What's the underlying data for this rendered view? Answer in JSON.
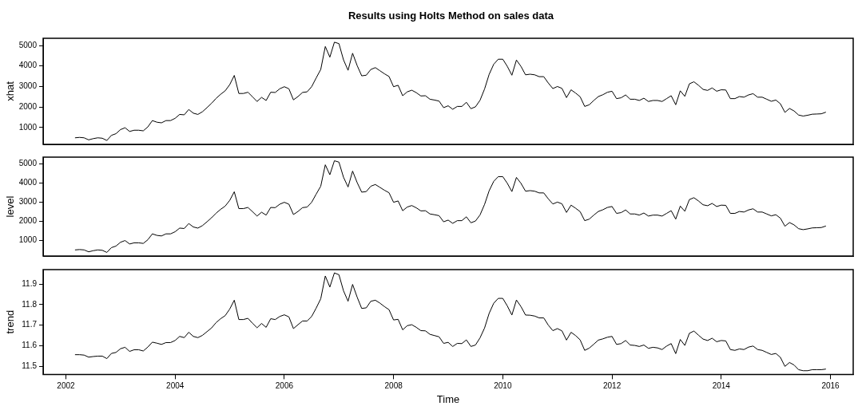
{
  "chart_data": [
    {
      "type": "line",
      "title": "Results using Holts Method on sales data",
      "ylabel": "xhat",
      "tick_labels": "y",
      "xlim": [
        "2001-08",
        "2016-06"
      ],
      "xticks": [
        "2002",
        "2004",
        "2006",
        "2008",
        "2010",
        "2012",
        "2014",
        "2016"
      ],
      "ylim": [
        180,
        5350
      ],
      "yticks": [
        1000,
        2000,
        3000,
        4000,
        5000
      ],
      "x": [
        "2002-03",
        "2002-04",
        "2002-05",
        "2002-06",
        "2002-07",
        "2002-08",
        "2002-09",
        "2002-10",
        "2002-11",
        "2002-12",
        "2003-01",
        "2003-02",
        "2003-03",
        "2003-04",
        "2003-05",
        "2003-06",
        "2003-07",
        "2003-08",
        "2003-09",
        "2003-10",
        "2003-11",
        "2003-12",
        "2004-01",
        "2004-02",
        "2004-03",
        "2004-04",
        "2004-05",
        "2004-06",
        "2004-07",
        "2004-08",
        "2004-09",
        "2004-10",
        "2004-11",
        "2004-12",
        "2005-01",
        "2005-02",
        "2005-03",
        "2005-04",
        "2005-05",
        "2005-06",
        "2005-07",
        "2005-08",
        "2005-09",
        "2005-10",
        "2005-11",
        "2005-12",
        "2006-01",
        "2006-02",
        "2006-03",
        "2006-04",
        "2006-05",
        "2006-06",
        "2006-07",
        "2006-08",
        "2006-09",
        "2006-10",
        "2006-11",
        "2006-12",
        "2007-01",
        "2007-02",
        "2007-03",
        "2007-04",
        "2007-05",
        "2007-06",
        "2007-07",
        "2007-08",
        "2007-09",
        "2007-10",
        "2007-11",
        "2007-12",
        "2008-01",
        "2008-02",
        "2008-03",
        "2008-04",
        "2008-05",
        "2008-06",
        "2008-07",
        "2008-08",
        "2008-09",
        "2008-10",
        "2008-11",
        "2008-12",
        "2009-01",
        "2009-02",
        "2009-03",
        "2009-04",
        "2009-05",
        "2009-06",
        "2009-07",
        "2009-08",
        "2009-09",
        "2009-10",
        "2009-11",
        "2009-12",
        "2010-01",
        "2010-02",
        "2010-03",
        "2010-04",
        "2010-05",
        "2010-06",
        "2010-07",
        "2010-08",
        "2010-09",
        "2010-10",
        "2010-11",
        "2010-12",
        "2011-01",
        "2011-02",
        "2011-03",
        "2011-04",
        "2011-05",
        "2011-06",
        "2011-07",
        "2011-08",
        "2011-09",
        "2011-10",
        "2011-11",
        "2011-12",
        "2012-01",
        "2012-02",
        "2012-03",
        "2012-04",
        "2012-05",
        "2012-06",
        "2012-07",
        "2012-08",
        "2012-09",
        "2012-10",
        "2012-11",
        "2012-12",
        "2013-01",
        "2013-02",
        "2013-03",
        "2013-04",
        "2013-05",
        "2013-06",
        "2013-07",
        "2013-08",
        "2013-09",
        "2013-10",
        "2013-11",
        "2013-12",
        "2014-01",
        "2014-02",
        "2014-03",
        "2014-04",
        "2014-05",
        "2014-06",
        "2014-07",
        "2014-08",
        "2014-09",
        "2014-10",
        "2014-11",
        "2014-12",
        "2015-01",
        "2015-02",
        "2015-03",
        "2015-04",
        "2015-05",
        "2015-06",
        "2015-07",
        "2015-08",
        "2015-09",
        "2015-10",
        "2015-11",
        "2015-12"
      ],
      "series": [
        {
          "color": "#000000",
          "values": [
            500,
            520,
            500,
            400,
            460,
            500,
            480,
            370,
            620,
            700,
            900,
            990,
            810,
            870,
            870,
            840,
            1030,
            1340,
            1260,
            1230,
            1340,
            1340,
            1450,
            1640,
            1620,
            1880,
            1700,
            1640,
            1770,
            1970,
            2180,
            2420,
            2620,
            2790,
            3090,
            3540,
            2660,
            2660,
            2720,
            2500,
            2270,
            2470,
            2320,
            2720,
            2710,
            2890,
            2990,
            2890,
            2350,
            2510,
            2710,
            2740,
            2990,
            3420,
            3830,
            4950,
            4430,
            5160,
            5090,
            4300,
            3790,
            4620,
            4020,
            3520,
            3550,
            3830,
            3920,
            3770,
            3620,
            3490,
            2990,
            3060,
            2550,
            2740,
            2820,
            2700,
            2540,
            2550,
            2380,
            2340,
            2290,
            1970,
            2060,
            1890,
            2030,
            2030,
            2230,
            1920,
            2010,
            2330,
            2880,
            3590,
            4080,
            4330,
            4330,
            3980,
            3550,
            4290,
            3980,
            3570,
            3600,
            3570,
            3480,
            3480,
            3170,
            2900,
            3000,
            2910,
            2460,
            2840,
            2680,
            2500,
            2030,
            2110,
            2320,
            2510,
            2600,
            2720,
            2770,
            2410,
            2450,
            2590,
            2380,
            2380,
            2320,
            2430,
            2270,
            2320,
            2320,
            2270,
            2410,
            2550,
            2110,
            2790,
            2520,
            3130,
            3230,
            3060,
            2860,
            2810,
            2930,
            2770,
            2840,
            2830,
            2410,
            2410,
            2510,
            2480,
            2590,
            2650,
            2480,
            2480,
            2380,
            2280,
            2340,
            2160,
            1740,
            1930,
            1810,
            1610,
            1560,
            1600,
            1650,
            1660,
            1670,
            1750
          ]
        }
      ]
    },
    {
      "type": "line",
      "ylabel": "level",
      "tick_labels": "y",
      "xlim": [
        "2001-08",
        "2016-06"
      ],
      "xticks": [
        "2002",
        "2004",
        "2006",
        "2008",
        "2010",
        "2012",
        "2014",
        "2016"
      ],
      "ylim": [
        170,
        5340
      ],
      "yticks": [
        1000,
        2000,
        3000,
        4000,
        5000
      ],
      "x": [
        "2002-03",
        "2002-04",
        "2002-05",
        "2002-06",
        "2002-07",
        "2002-08",
        "2002-09",
        "2002-10",
        "2002-11",
        "2002-12",
        "2003-01",
        "2003-02",
        "2003-03",
        "2003-04",
        "2003-05",
        "2003-06",
        "2003-07",
        "2003-08",
        "2003-09",
        "2003-10",
        "2003-11",
        "2003-12",
        "2004-01",
        "2004-02",
        "2004-03",
        "2004-04",
        "2004-05",
        "2004-06",
        "2004-07",
        "2004-08",
        "2004-09",
        "2004-10",
        "2004-11",
        "2004-12",
        "2005-01",
        "2005-02",
        "2005-03",
        "2005-04",
        "2005-05",
        "2005-06",
        "2005-07",
        "2005-08",
        "2005-09",
        "2005-10",
        "2005-11",
        "2005-12",
        "2006-01",
        "2006-02",
        "2006-03",
        "2006-04",
        "2006-05",
        "2006-06",
        "2006-07",
        "2006-08",
        "2006-09",
        "2006-10",
        "2006-11",
        "2006-12",
        "2007-01",
        "2007-02",
        "2007-03",
        "2007-04",
        "2007-05",
        "2007-06",
        "2007-07",
        "2007-08",
        "2007-09",
        "2007-10",
        "2007-11",
        "2007-12",
        "2008-01",
        "2008-02",
        "2008-03",
        "2008-04",
        "2008-05",
        "2008-06",
        "2008-07",
        "2008-08",
        "2008-09",
        "2008-10",
        "2008-11",
        "2008-12",
        "2009-01",
        "2009-02",
        "2009-03",
        "2009-04",
        "2009-05",
        "2009-06",
        "2009-07",
        "2009-08",
        "2009-09",
        "2009-10",
        "2009-11",
        "2009-12",
        "2010-01",
        "2010-02",
        "2010-03",
        "2010-04",
        "2010-05",
        "2010-06",
        "2010-07",
        "2010-08",
        "2010-09",
        "2010-10",
        "2010-11",
        "2010-12",
        "2011-01",
        "2011-02",
        "2011-03",
        "2011-04",
        "2011-05",
        "2011-06",
        "2011-07",
        "2011-08",
        "2011-09",
        "2011-10",
        "2011-11",
        "2011-12",
        "2012-01",
        "2012-02",
        "2012-03",
        "2012-04",
        "2012-05",
        "2012-06",
        "2012-07",
        "2012-08",
        "2012-09",
        "2012-10",
        "2012-11",
        "2012-12",
        "2013-01",
        "2013-02",
        "2013-03",
        "2013-04",
        "2013-05",
        "2013-06",
        "2013-07",
        "2013-08",
        "2013-09",
        "2013-10",
        "2013-11",
        "2013-12",
        "2014-01",
        "2014-02",
        "2014-03",
        "2014-04",
        "2014-05",
        "2014-06",
        "2014-07",
        "2014-08",
        "2014-09",
        "2014-10",
        "2014-11",
        "2014-12",
        "2015-01",
        "2015-02",
        "2015-03",
        "2015-04",
        "2015-05",
        "2015-06",
        "2015-07",
        "2015-08",
        "2015-09",
        "2015-10",
        "2015-11",
        "2015-12"
      ],
      "series": [
        {
          "color": "#000000",
          "values": [
            490,
            510,
            490,
            390,
            450,
            490,
            470,
            360,
            610,
            690,
            890,
            980,
            800,
            860,
            860,
            830,
            1020,
            1330,
            1250,
            1220,
            1330,
            1330,
            1440,
            1630,
            1610,
            1870,
            1690,
            1630,
            1760,
            1960,
            2170,
            2410,
            2610,
            2780,
            3080,
            3530,
            2650,
            2650,
            2710,
            2490,
            2260,
            2460,
            2310,
            2710,
            2700,
            2880,
            2980,
            2880,
            2340,
            2500,
            2700,
            2730,
            2980,
            3410,
            3820,
            4940,
            4420,
            5150,
            5080,
            4290,
            3780,
            4610,
            4010,
            3510,
            3540,
            3820,
            3910,
            3760,
            3610,
            3480,
            2980,
            3050,
            2540,
            2730,
            2810,
            2690,
            2530,
            2540,
            2370,
            2330,
            2280,
            1960,
            2050,
            1880,
            2020,
            2020,
            2220,
            1910,
            2000,
            2320,
            2870,
            3580,
            4070,
            4320,
            4320,
            3970,
            3540,
            4280,
            3970,
            3560,
            3590,
            3560,
            3470,
            3470,
            3160,
            2890,
            2990,
            2900,
            2450,
            2830,
            2670,
            2490,
            2020,
            2100,
            2310,
            2500,
            2590,
            2710,
            2760,
            2400,
            2440,
            2580,
            2370,
            2370,
            2310,
            2420,
            2260,
            2310,
            2310,
            2260,
            2400,
            2540,
            2100,
            2780,
            2510,
            3120,
            3220,
            3050,
            2850,
            2800,
            2920,
            2760,
            2830,
            2820,
            2400,
            2400,
            2500,
            2470,
            2580,
            2640,
            2470,
            2470,
            2370,
            2270,
            2330,
            2150,
            1730,
            1920,
            1800,
            1600,
            1550,
            1590,
            1640,
            1650,
            1660,
            1740
          ]
        }
      ]
    },
    {
      "type": "line",
      "ylabel": "trend",
      "xlabel": "Time",
      "xlim": [
        "2001-08",
        "2016-06"
      ],
      "xticks": [
        "2002",
        "2004",
        "2006",
        "2008",
        "2010",
        "2012",
        "2014",
        "2016"
      ],
      "ylim": [
        11.46,
        11.97
      ],
      "yticks": [
        11.5,
        11.6,
        11.7,
        11.8,
        11.9
      ],
      "x": [
        "2002-03",
        "2002-04",
        "2002-05",
        "2002-06",
        "2002-07",
        "2002-08",
        "2002-09",
        "2002-10",
        "2002-11",
        "2002-12",
        "2003-01",
        "2003-02",
        "2003-03",
        "2003-04",
        "2003-05",
        "2003-06",
        "2003-07",
        "2003-08",
        "2003-09",
        "2003-10",
        "2003-11",
        "2003-12",
        "2004-01",
        "2004-02",
        "2004-03",
        "2004-04",
        "2004-05",
        "2004-06",
        "2004-07",
        "2004-08",
        "2004-09",
        "2004-10",
        "2004-11",
        "2004-12",
        "2005-01",
        "2005-02",
        "2005-03",
        "2005-04",
        "2005-05",
        "2005-06",
        "2005-07",
        "2005-08",
        "2005-09",
        "2005-10",
        "2005-11",
        "2005-12",
        "2006-01",
        "2006-02",
        "2006-03",
        "2006-04",
        "2006-05",
        "2006-06",
        "2006-07",
        "2006-08",
        "2006-09",
        "2006-10",
        "2006-11",
        "2006-12",
        "2007-01",
        "2007-02",
        "2007-03",
        "2007-04",
        "2007-05",
        "2007-06",
        "2007-07",
        "2007-08",
        "2007-09",
        "2007-10",
        "2007-11",
        "2007-12",
        "2008-01",
        "2008-02",
        "2008-03",
        "2008-04",
        "2008-05",
        "2008-06",
        "2008-07",
        "2008-08",
        "2008-09",
        "2008-10",
        "2008-11",
        "2008-12",
        "2009-01",
        "2009-02",
        "2009-03",
        "2009-04",
        "2009-05",
        "2009-06",
        "2009-07",
        "2009-08",
        "2009-09",
        "2009-10",
        "2009-11",
        "2009-12",
        "2010-01",
        "2010-02",
        "2010-03",
        "2010-04",
        "2010-05",
        "2010-06",
        "2010-07",
        "2010-08",
        "2010-09",
        "2010-10",
        "2010-11",
        "2010-12",
        "2011-01",
        "2011-02",
        "2011-03",
        "2011-04",
        "2011-05",
        "2011-06",
        "2011-07",
        "2011-08",
        "2011-09",
        "2011-10",
        "2011-11",
        "2011-12",
        "2012-01",
        "2012-02",
        "2012-03",
        "2012-04",
        "2012-05",
        "2012-06",
        "2012-07",
        "2012-08",
        "2012-09",
        "2012-10",
        "2012-11",
        "2012-12",
        "2013-01",
        "2013-02",
        "2013-03",
        "2013-04",
        "2013-05",
        "2013-06",
        "2013-07",
        "2013-08",
        "2013-09",
        "2013-10",
        "2013-11",
        "2013-12",
        "2014-01",
        "2014-02",
        "2014-03",
        "2014-04",
        "2014-05",
        "2014-06",
        "2014-07",
        "2014-08",
        "2014-09",
        "2014-10",
        "2014-11",
        "2014-12",
        "2015-01",
        "2015-02",
        "2015-03",
        "2015-04",
        "2015-05",
        "2015-06",
        "2015-07",
        "2015-08",
        "2015-09",
        "2015-10",
        "2015-11",
        "2015-12"
      ],
      "series": [
        {
          "color": "#000000",
          "values": [
            11.556,
            11.556,
            11.554,
            11.544,
            11.547,
            11.549,
            11.549,
            11.537,
            11.562,
            11.567,
            11.585,
            11.592,
            11.572,
            11.58,
            11.58,
            11.574,
            11.593,
            11.617,
            11.612,
            11.606,
            11.615,
            11.615,
            11.625,
            11.645,
            11.639,
            11.665,
            11.645,
            11.639,
            11.65,
            11.668,
            11.686,
            11.712,
            11.731,
            11.746,
            11.778,
            11.821,
            11.727,
            11.727,
            11.733,
            11.709,
            11.687,
            11.708,
            11.689,
            11.731,
            11.727,
            11.742,
            11.75,
            11.74,
            11.683,
            11.702,
            11.72,
            11.72,
            11.742,
            11.783,
            11.828,
            11.939,
            11.885,
            11.954,
            11.945,
            11.867,
            11.816,
            11.898,
            11.836,
            11.781,
            11.784,
            11.816,
            11.821,
            11.807,
            11.79,
            11.775,
            11.725,
            11.728,
            11.677,
            11.697,
            11.702,
            11.689,
            11.673,
            11.672,
            11.655,
            11.649,
            11.643,
            11.611,
            11.616,
            11.596,
            11.611,
            11.61,
            11.628,
            11.596,
            11.603,
            11.638,
            11.686,
            11.757,
            11.806,
            11.83,
            11.83,
            11.793,
            11.749,
            11.822,
            11.79,
            11.749,
            11.748,
            11.744,
            11.735,
            11.735,
            11.7,
            11.673,
            11.683,
            11.672,
            11.627,
            11.665,
            11.649,
            11.628,
            11.577,
            11.588,
            11.607,
            11.627,
            11.633,
            11.641,
            11.645,
            11.606,
            11.61,
            11.625,
            11.603,
            11.601,
            11.596,
            11.603,
            11.587,
            11.592,
            11.589,
            11.581,
            11.598,
            11.61,
            11.561,
            11.63,
            11.601,
            11.66,
            11.671,
            11.651,
            11.632,
            11.625,
            11.636,
            11.619,
            11.625,
            11.623,
            11.581,
            11.577,
            11.584,
            11.581,
            11.593,
            11.598,
            11.581,
            11.577,
            11.567,
            11.557,
            11.562,
            11.543,
            11.499,
            11.518,
            11.506,
            11.483,
            11.478,
            11.478,
            11.483,
            11.483,
            11.483,
            11.486
          ]
        }
      ]
    }
  ]
}
